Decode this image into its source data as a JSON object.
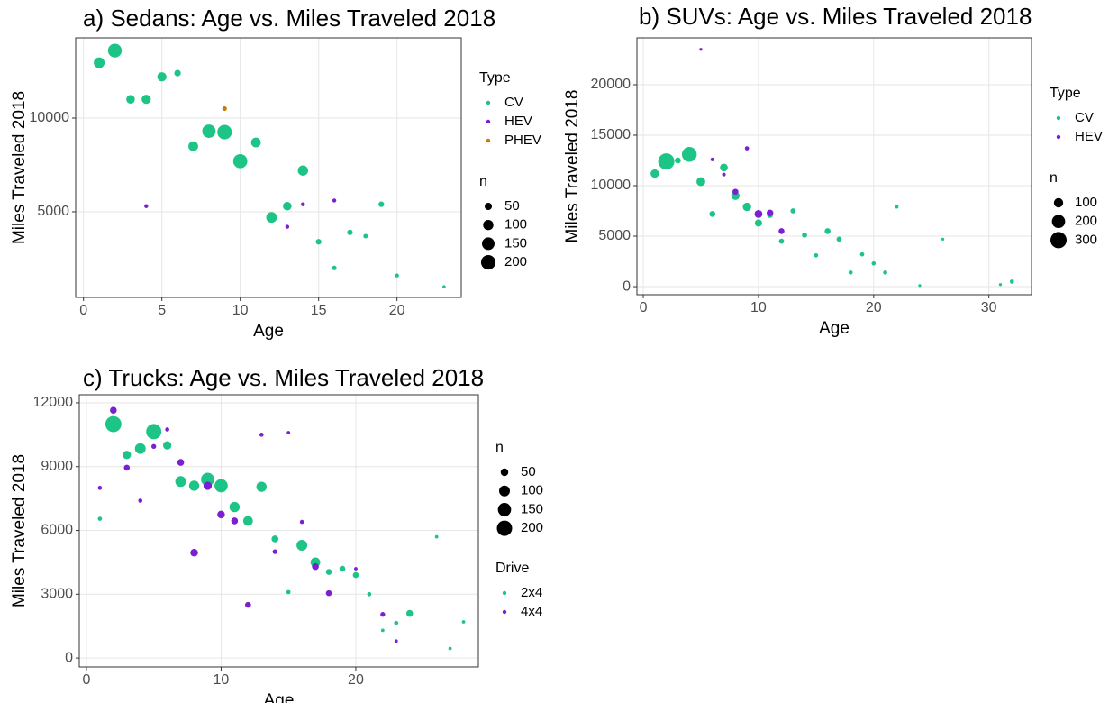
{
  "chart_data": [
    {
      "type": "scatter",
      "title": "a) Sedans: Age vs. Miles Traveled 2018",
      "xlabel": "Age",
      "ylabel": "Miles Traveled 2018",
      "xlim": [
        -0.5,
        24.1
      ],
      "ylim": [
        430,
        14280
      ],
      "xticks": [
        0,
        5,
        10,
        15,
        20
      ],
      "yticks": [
        5000,
        10000
      ],
      "grid": true,
      "legends": [
        {
          "title": "Type"
        },
        {
          "title": "n",
          "values": [
            50,
            100,
            150,
            200
          ]
        }
      ],
      "series": [
        {
          "name": "CV",
          "color": "#1cc486",
          "x": [
            1,
            2,
            3,
            4,
            5,
            6,
            7,
            8,
            9,
            10,
            11,
            12,
            13,
            14,
            15,
            16,
            17,
            18,
            19,
            20,
            23
          ],
          "values": [
            12950,
            13600,
            11000,
            11000,
            12200,
            12400,
            8500,
            9300,
            9250,
            7700,
            8700,
            4700,
            5300,
            7200,
            3400,
            2000,
            3900,
            3700,
            5400,
            1600,
            1000
          ],
          "sizes": [
            110,
            180,
            70,
            80,
            80,
            40,
            90,
            170,
            200,
            190,
            90,
            110,
            70,
            100,
            30,
            20,
            30,
            20,
            30,
            15,
            10
          ]
        },
        {
          "name": "HEV",
          "color": "#7a1fd1",
          "x": [
            4,
            13,
            14,
            16
          ],
          "values": [
            5300,
            4200,
            5400,
            5600
          ],
          "sizes": [
            15,
            15,
            15,
            15
          ]
        },
        {
          "name": "PHEV",
          "color": "#c8790c",
          "x": [
            9
          ],
          "values": [
            10500
          ],
          "sizes": [
            20
          ]
        }
      ]
    },
    {
      "type": "scatter",
      "title": "b) SUVs: Age vs. Miles Traveled 2018",
      "xlabel": "Age",
      "ylabel": "Miles Traveled 2018",
      "xlim": [
        -0.55,
        33.7
      ],
      "ylim": [
        -800,
        24640
      ],
      "xticks": [
        0,
        10,
        20,
        30
      ],
      "yticks": [
        0,
        5000,
        10000,
        15000,
        20000
      ],
      "grid": true,
      "legends": [
        {
          "title": "Type"
        },
        {
          "title": "n",
          "values": [
            100,
            200,
            300
          ]
        }
      ],
      "series": [
        {
          "name": "CV",
          "color": "#1cc486",
          "x": [
            1,
            2,
            3,
            4,
            5,
            6,
            7,
            8,
            9,
            10,
            11,
            12,
            13,
            14,
            15,
            16,
            17,
            18,
            19,
            20,
            21,
            22,
            24,
            26,
            31,
            32
          ],
          "values": [
            11200,
            12400,
            12500,
            13100,
            10400,
            7200,
            11800,
            9000,
            7900,
            6300,
            7100,
            4500,
            7500,
            5100,
            3100,
            5500,
            4700,
            1400,
            3200,
            2300,
            1400,
            7900,
            100,
            4700,
            200,
            500
          ],
          "sizes": [
            80,
            300,
            40,
            250,
            90,
            40,
            70,
            80,
            80,
            60,
            40,
            30,
            30,
            30,
            20,
            40,
            30,
            20,
            20,
            20,
            20,
            15,
            10,
            10,
            10,
            20
          ]
        },
        {
          "name": "HEV",
          "color": "#7a1fd1",
          "x": [
            5,
            6,
            7,
            8,
            9,
            10,
            11,
            12
          ],
          "values": [
            23500,
            12600,
            11100,
            9400,
            13700,
            7200,
            7300,
            5500
          ],
          "sizes": [
            10,
            15,
            15,
            40,
            20,
            70,
            50,
            40
          ]
        }
      ]
    },
    {
      "type": "scatter",
      "title": "c) Trucks: Age vs. Miles Traveled 2018",
      "xlabel": "Age",
      "ylabel": "Miles Traveled 2018",
      "xlim": [
        -0.53,
        29.1
      ],
      "ylim": [
        -420,
        12380
      ],
      "xticks": [
        0,
        10,
        20
      ],
      "yticks": [
        0,
        3000,
        6000,
        9000,
        12000
      ],
      "grid": true,
      "legends": [
        {
          "title": "n",
          "values": [
            50,
            100,
            150,
            200
          ]
        },
        {
          "title": "Drive"
        }
      ],
      "series": [
        {
          "name": "2x4",
          "color": "#1cc486",
          "x": [
            1,
            2,
            3,
            4,
            5,
            6,
            7,
            8,
            9,
            10,
            11,
            12,
            13,
            14,
            15,
            16,
            17,
            18,
            19,
            20,
            21,
            22,
            23,
            24,
            26,
            27,
            28
          ],
          "values": [
            6550,
            11000,
            9550,
            9850,
            10650,
            10000,
            8300,
            8100,
            8400,
            8100,
            7100,
            6450,
            8050,
            5600,
            3100,
            5300,
            4500,
            4050,
            4200,
            3900,
            3000,
            1300,
            1650,
            2100,
            5700,
            450,
            1700
          ],
          "sizes": [
            15,
            220,
            60,
            100,
            200,
            60,
            100,
            90,
            150,
            150,
            90,
            80,
            90,
            40,
            15,
            100,
            80,
            30,
            30,
            30,
            15,
            10,
            15,
            40,
            10,
            10,
            10
          ]
        },
        {
          "name": "4x4",
          "color": "#7a1fd1",
          "x": [
            1,
            2,
            3,
            4,
            5,
            6,
            7,
            8,
            9,
            10,
            11,
            12,
            13,
            14,
            15,
            16,
            17,
            18,
            20,
            22,
            23
          ],
          "values": [
            8000,
            11650,
            8950,
            7400,
            9950,
            10750,
            9200,
            4950,
            8100,
            6750,
            6450,
            2500,
            10500,
            5000,
            10600,
            6400,
            4300,
            3050,
            4200,
            2050,
            800
          ],
          "sizes": [
            15,
            40,
            30,
            15,
            20,
            15,
            40,
            50,
            60,
            50,
            40,
            30,
            15,
            20,
            10,
            15,
            40,
            30,
            10,
            20,
            10
          ]
        }
      ]
    }
  ]
}
